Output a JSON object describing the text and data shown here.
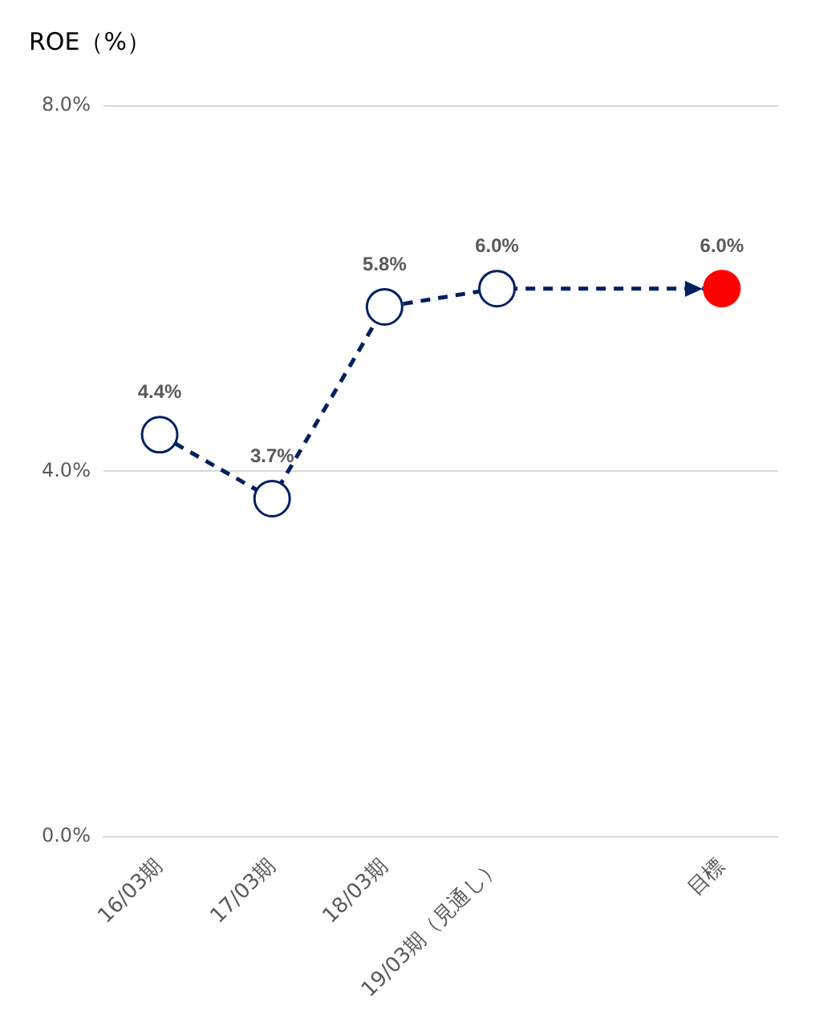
{
  "chart_data": {
    "type": "line",
    "title": "ROE（%）",
    "categories": [
      "16/03期",
      "17/03期",
      "18/03期",
      "19/03期（見通し）",
      null,
      "目標"
    ],
    "series": [
      {
        "color": "#002060",
        "colors": [
          "#ffffff",
          "#ffffff",
          "#ffffff",
          "#ffffff",
          null,
          "#ff0000"
        ],
        "values": [
          4.4,
          3.7,
          5.8,
          6.0,
          null,
          6.0
        ],
        "value_labels": [
          "4.4%",
          "3.7%",
          "5.8%",
          "6.0%",
          null,
          "6.0%"
        ]
      }
    ],
    "ylim": [
      0,
      8
    ],
    "yticks": [
      {
        "value": 0,
        "label": "0.0%"
      },
      {
        "value": 4,
        "label": "4.0%"
      },
      {
        "value": 8,
        "label": "8.0%"
      }
    ],
    "grid": "y",
    "legend": false,
    "marker": "circle",
    "line_style": "dashed"
  }
}
